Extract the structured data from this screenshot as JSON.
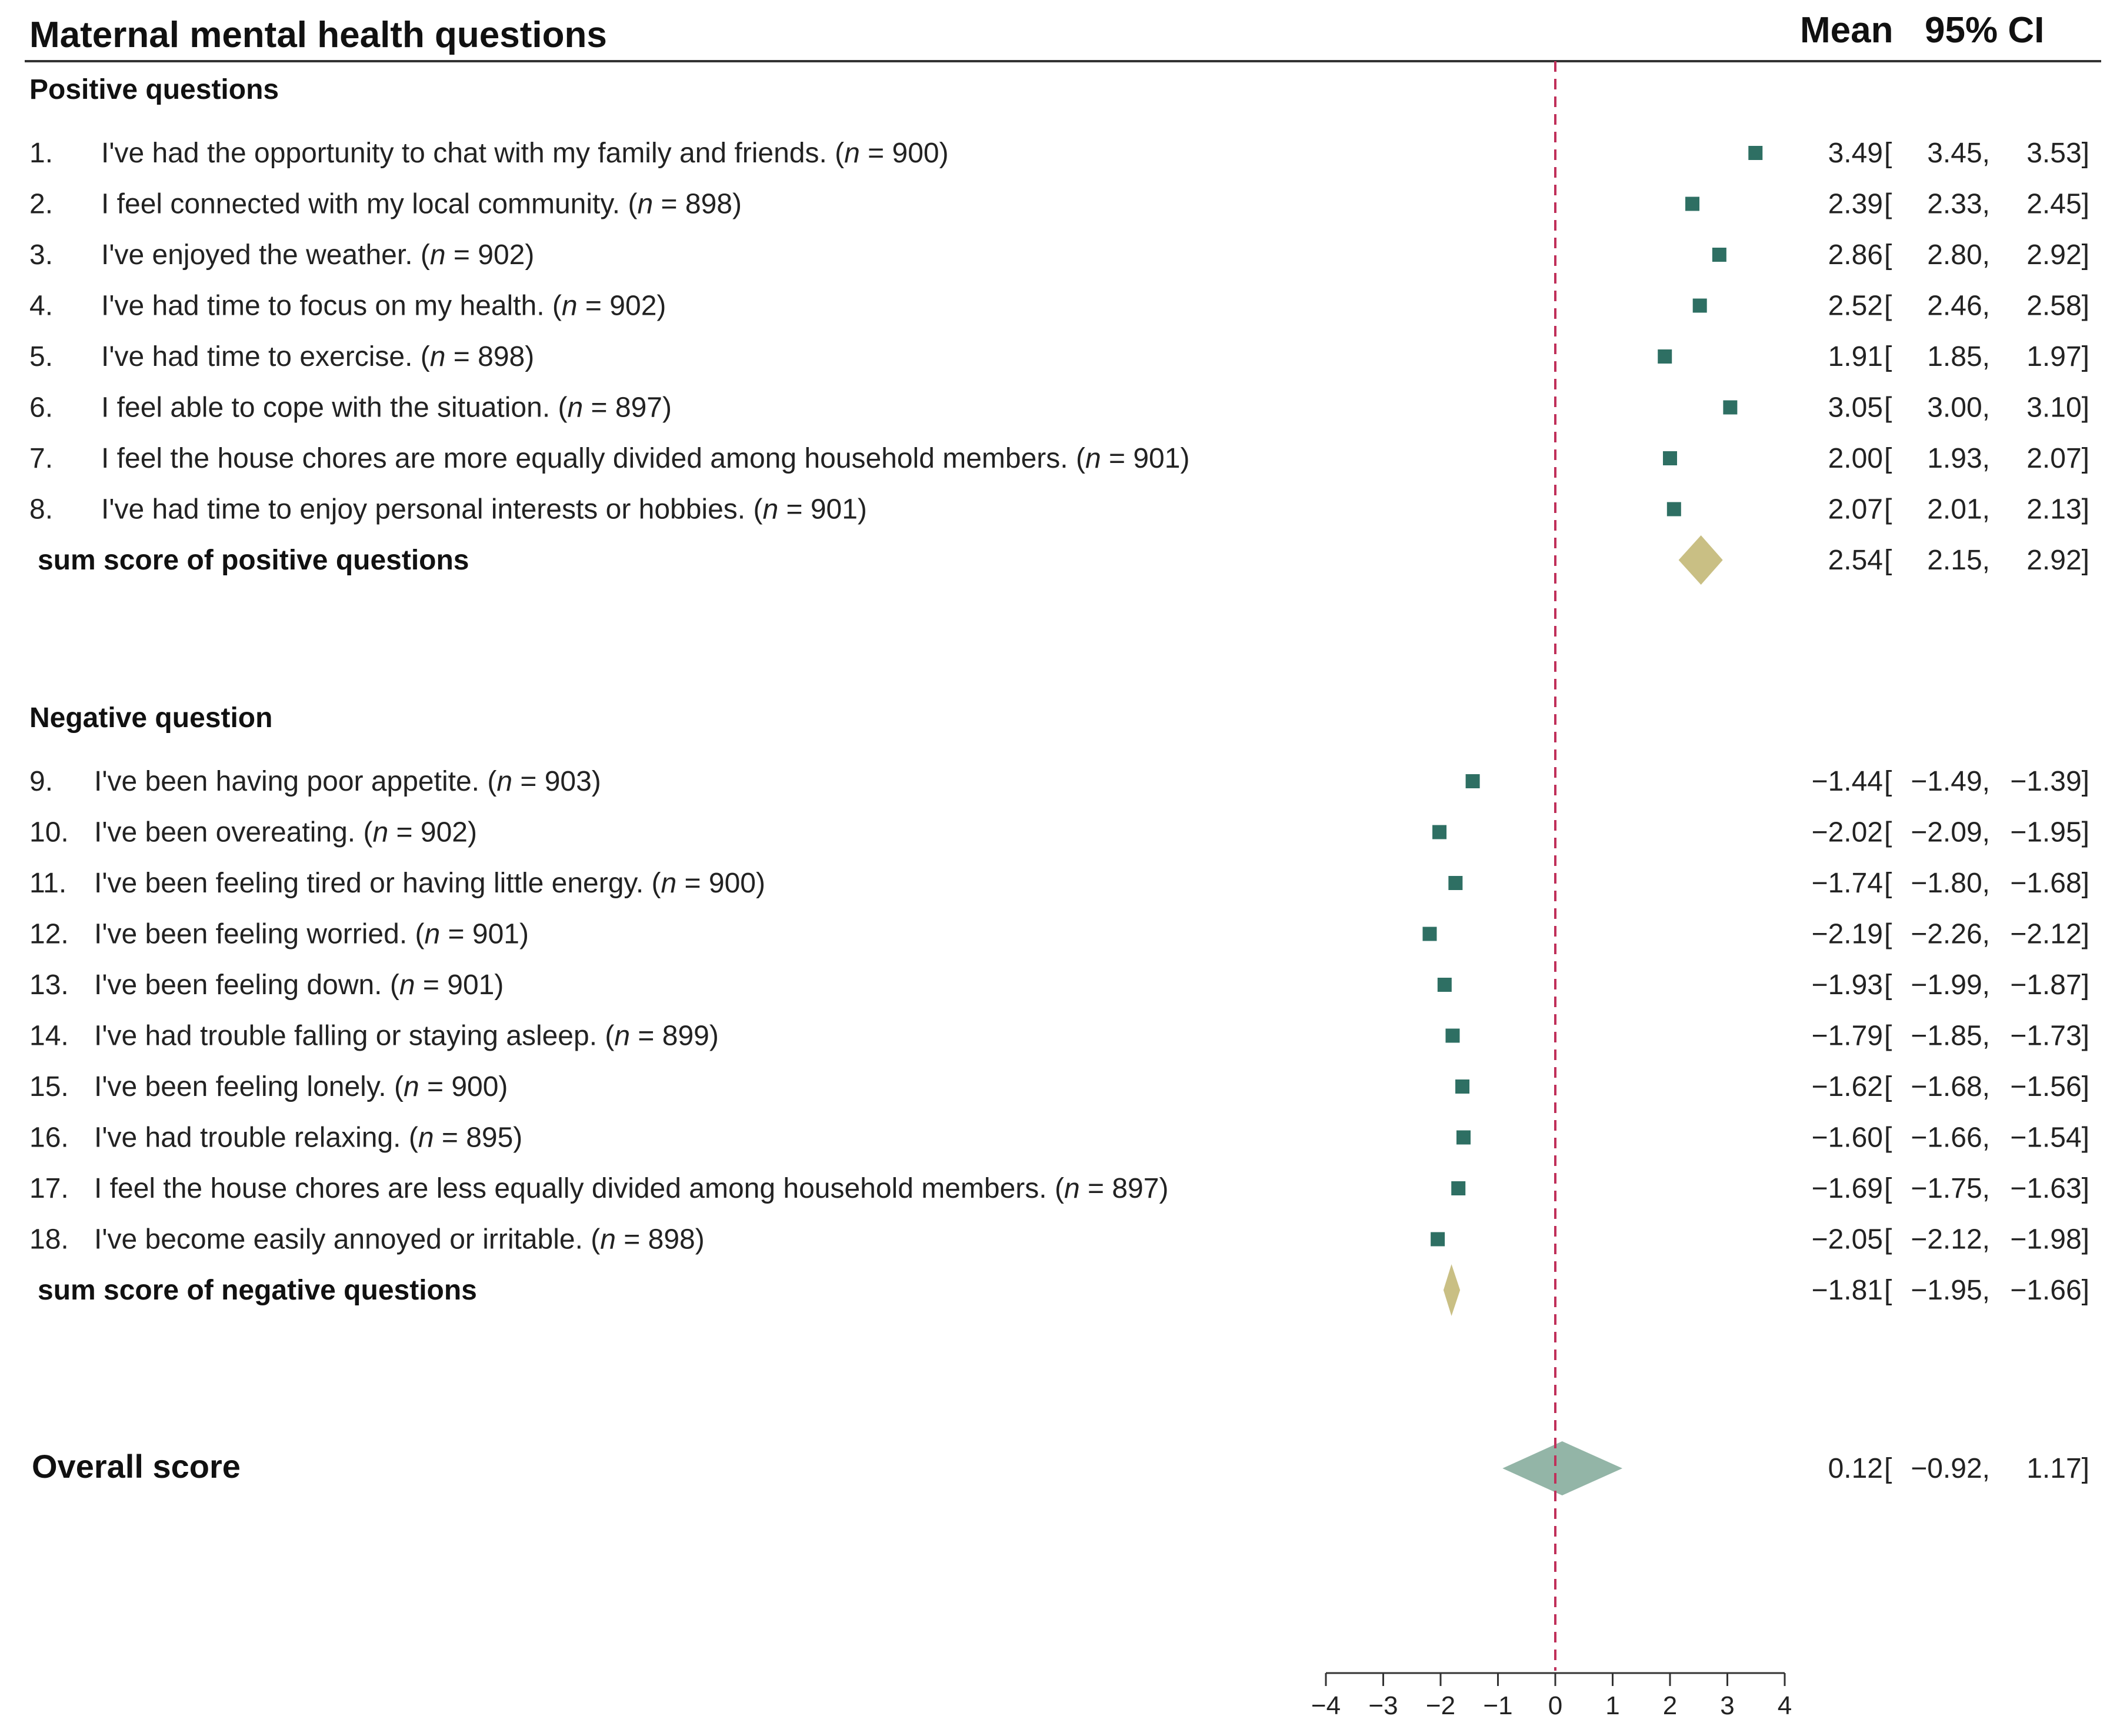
{
  "chart_data": {
    "type": "forest",
    "title": "Maternal mental health questions",
    "column_headers": {
      "mean": "Mean",
      "ci": "95% CI"
    },
    "reference_line": 0,
    "xlim": [
      -4,
      4
    ],
    "x_ticks": [
      -4,
      -3,
      -2,
      -1,
      0,
      1,
      2,
      3,
      4
    ],
    "x_tick_labels": [
      "−4",
      "−3",
      "−2",
      "−1",
      "0",
      "1",
      "2",
      "3",
      "4"
    ],
    "sections": [
      {
        "heading": "Positive questions",
        "items": [
          {
            "num": "1.",
            "text": "I've had the opportunity to chat with my family and friends.",
            "n": "900",
            "mean": 3.49,
            "lower": 3.45,
            "upper": 3.53,
            "mean_txt": "3.49",
            "lower_txt": "3.45,",
            "upper_txt": "3.53]"
          },
          {
            "num": "2.",
            "text": "I feel connected with my local community.",
            "n": "898",
            "mean": 2.39,
            "lower": 2.33,
            "upper": 2.45,
            "mean_txt": "2.39",
            "lower_txt": "2.33,",
            "upper_txt": "2.45]"
          },
          {
            "num": "3.",
            "text": "I've enjoyed the weather.",
            "n": "902",
            "mean": 2.86,
            "lower": 2.8,
            "upper": 2.92,
            "mean_txt": "2.86",
            "lower_txt": "2.80,",
            "upper_txt": "2.92]"
          },
          {
            "num": "4.",
            "text": "I've had time to focus on my health.",
            "n": "902",
            "mean": 2.52,
            "lower": 2.46,
            "upper": 2.58,
            "mean_txt": "2.52",
            "lower_txt": "2.46,",
            "upper_txt": "2.58]"
          },
          {
            "num": "5.",
            "text": "I've had time to exercise.",
            "n": "898",
            "mean": 1.91,
            "lower": 1.85,
            "upper": 1.97,
            "mean_txt": "1.91",
            "lower_txt": "1.85,",
            "upper_txt": "1.97]"
          },
          {
            "num": "6.",
            "text": "I feel able to cope with the situation.",
            "n": "897",
            "mean": 3.05,
            "lower": 3.0,
            "upper": 3.1,
            "mean_txt": "3.05",
            "lower_txt": "3.00,",
            "upper_txt": "3.10]"
          },
          {
            "num": "7.",
            "text": "I feel the house chores are more equally divided among household members.",
            "n": "901",
            "mean": 2.0,
            "lower": 1.93,
            "upper": 2.07,
            "mean_txt": "2.00",
            "lower_txt": "1.93,",
            "upper_txt": "2.07]"
          },
          {
            "num": "8.",
            "text": "I've had time to enjoy personal interests or hobbies.",
            "n": "901",
            "mean": 2.07,
            "lower": 2.01,
            "upper": 2.13,
            "mean_txt": "2.07",
            "lower_txt": "2.01,",
            "upper_txt": "2.13]"
          }
        ],
        "summary": {
          "text": "sum score of positive questions",
          "mean": 2.54,
          "lower": 2.15,
          "upper": 2.92,
          "mean_txt": "2.54",
          "lower_txt": "2.15,",
          "upper_txt": "2.92]"
        }
      },
      {
        "heading": "Negative question",
        "items": [
          {
            "num": "9.",
            "text": "I've been having poor appetite.",
            "n": "903",
            "mean": -1.44,
            "lower": -1.49,
            "upper": -1.39,
            "mean_txt": "−1.44",
            "lower_txt": "−1.49,",
            "upper_txt": "−1.39]"
          },
          {
            "num": "10.",
            "text": "I've been overeating.",
            "n": "902",
            "mean": -2.02,
            "lower": -2.09,
            "upper": -1.95,
            "mean_txt": "−2.02",
            "lower_txt": "−2.09,",
            "upper_txt": "−1.95]"
          },
          {
            "num": "11.",
            "text": "I've been feeling tired or having little energy.",
            "n": "900",
            "mean": -1.74,
            "lower": -1.8,
            "upper": -1.68,
            "mean_txt": "−1.74",
            "lower_txt": "−1.80,",
            "upper_txt": "−1.68]"
          },
          {
            "num": "12.",
            "text": "I've been feeling worried.",
            "n": "901",
            "mean": -2.19,
            "lower": -2.26,
            "upper": -2.12,
            "mean_txt": "−2.19",
            "lower_txt": "−2.26,",
            "upper_txt": "−2.12]"
          },
          {
            "num": "13.",
            "text": "I've been feeling down.",
            "n": "901",
            "mean": -1.93,
            "lower": -1.99,
            "upper": -1.87,
            "mean_txt": "−1.93",
            "lower_txt": "−1.99,",
            "upper_txt": "−1.87]"
          },
          {
            "num": "14.",
            "text": "I've had trouble falling or staying asleep.",
            "n": "899",
            "mean": -1.79,
            "lower": -1.85,
            "upper": -1.73,
            "mean_txt": "−1.79",
            "lower_txt": "−1.85,",
            "upper_txt": "−1.73]"
          },
          {
            "num": "15.",
            "text": "I've been feeling lonely.",
            "n": "900",
            "mean": -1.62,
            "lower": -1.68,
            "upper": -1.56,
            "mean_txt": "−1.62",
            "lower_txt": "−1.68,",
            "upper_txt": "−1.56]"
          },
          {
            "num": "16.",
            "text": "I've had trouble relaxing.",
            "n": "895",
            "mean": -1.6,
            "lower": -1.66,
            "upper": -1.54,
            "mean_txt": "−1.60",
            "lower_txt": "−1.66,",
            "upper_txt": "−1.54]"
          },
          {
            "num": "17.",
            "text": "I feel the house chores are less equally divided among household members.",
            "n": "897",
            "mean": -1.69,
            "lower": -1.75,
            "upper": -1.63,
            "mean_txt": "−1.69",
            "lower_txt": "−1.75,",
            "upper_txt": "−1.63]"
          },
          {
            "num": "18.",
            "text": "I've become easily annoyed or irritable.",
            "n": "898",
            "mean": -2.05,
            "lower": -2.12,
            "upper": -1.98,
            "mean_txt": "−2.05",
            "lower_txt": "−2.12,",
            "upper_txt": "−1.98]"
          }
        ],
        "summary": {
          "text": "sum score of negative questions",
          "mean": -1.81,
          "lower": -1.95,
          "upper": -1.66,
          "mean_txt": "−1.81",
          "lower_txt": "−1.95,",
          "upper_txt": "−1.66]"
        }
      }
    ],
    "overall": {
      "text": "Overall score",
      "mean": 0.12,
      "lower": -0.92,
      "upper": 1.17,
      "mean_txt": "0.12",
      "lower_txt": "−0.92,",
      "upper_txt": "1.17]"
    },
    "n_prefix": "(",
    "n_symbol": "n",
    "n_equals": " = ",
    "n_suffix": ")",
    "ci_open": "[",
    "colors": {
      "marker": "#2e6f63",
      "summary_diamond": "#c9bf84",
      "overall_diamond": "#93b5a7",
      "reference_line": "#c0305a",
      "rule": "#333333"
    }
  }
}
